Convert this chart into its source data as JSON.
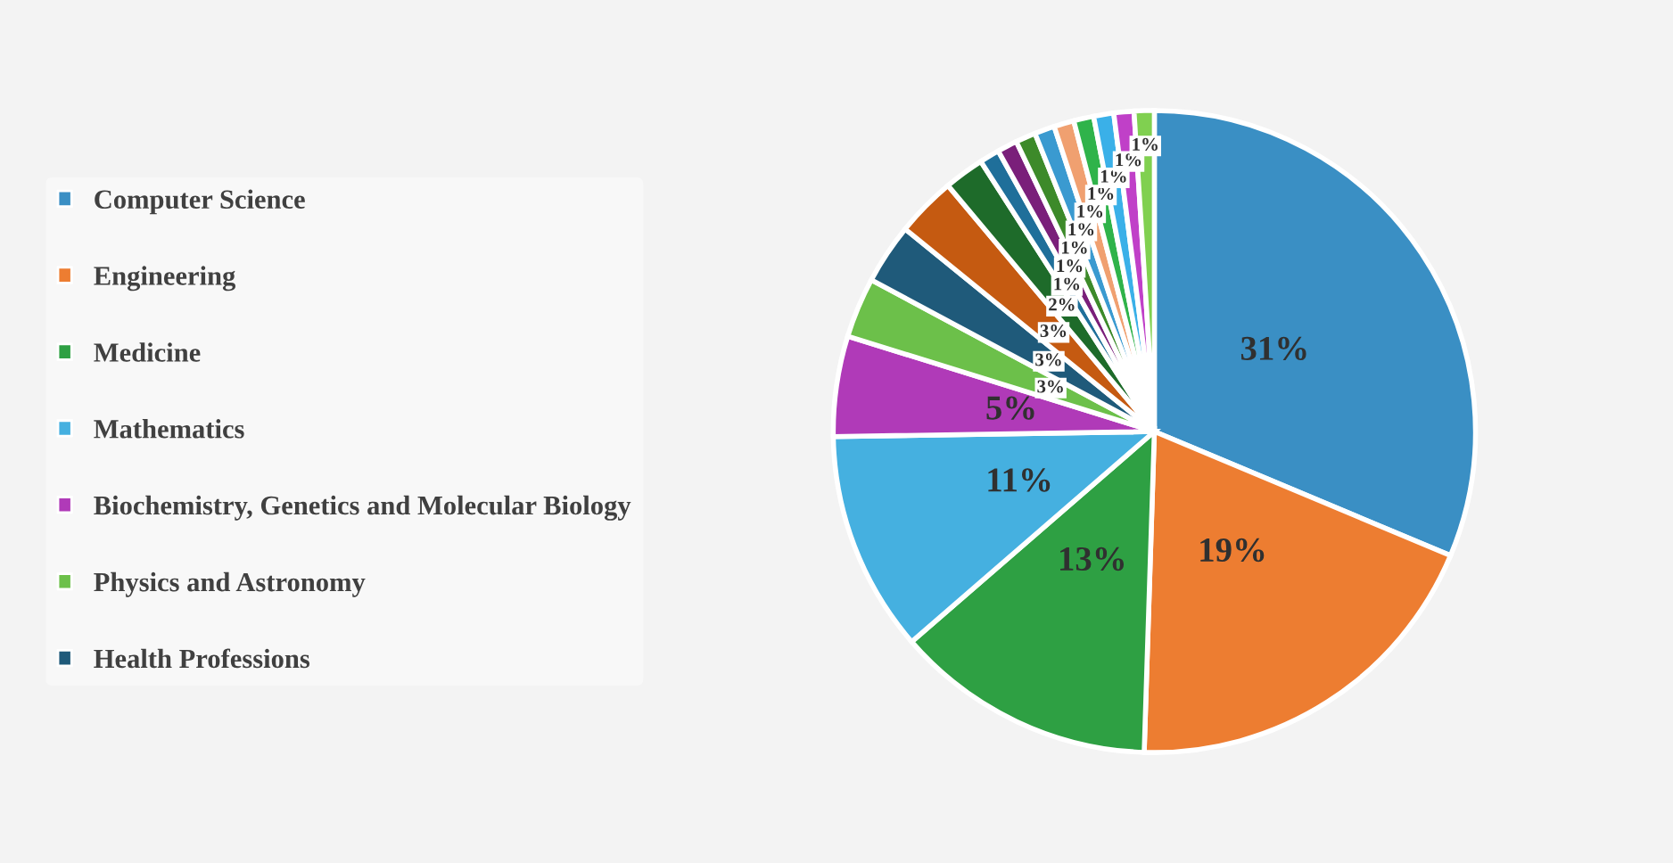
{
  "chart_data": {
    "type": "pie",
    "categories": [
      "Computer Science",
      "Engineering",
      "Medicine",
      "Mathematics",
      "Biochemistry, Genetics and Molecular Biology",
      "Physics and Astronomy",
      "Health Professions",
      null,
      null,
      null,
      null,
      null,
      null,
      null,
      null,
      null,
      null,
      null
    ],
    "values": [
      31,
      19,
      13,
      11,
      5,
      3,
      3,
      3,
      2,
      1,
      1,
      1,
      1,
      1,
      1,
      1,
      1,
      1
    ],
    "value_labels": [
      "31%",
      "19%",
      "13%",
      "11%",
      "5%",
      "3%",
      "3%",
      "3%",
      "2%",
      "1%",
      "1%",
      "1%",
      "1%",
      "1%",
      "1%",
      "1%",
      "1%",
      "1%"
    ],
    "colors": [
      "#3a8fc4",
      "#ed7d31",
      "#2ea043",
      "#45b0e0",
      "#b03ab8",
      "#6cc04a",
      "#1f5a7a",
      "#c55a11",
      "#1e6b2a",
      "#1f6f9a",
      "#7a1f7a",
      "#3d8a2a",
      "#3a9ad0",
      "#f0a070",
      "#2fb34a",
      "#3ab0e8",
      "#c040c8",
      "#80d050"
    ],
    "legend": "left"
  }
}
